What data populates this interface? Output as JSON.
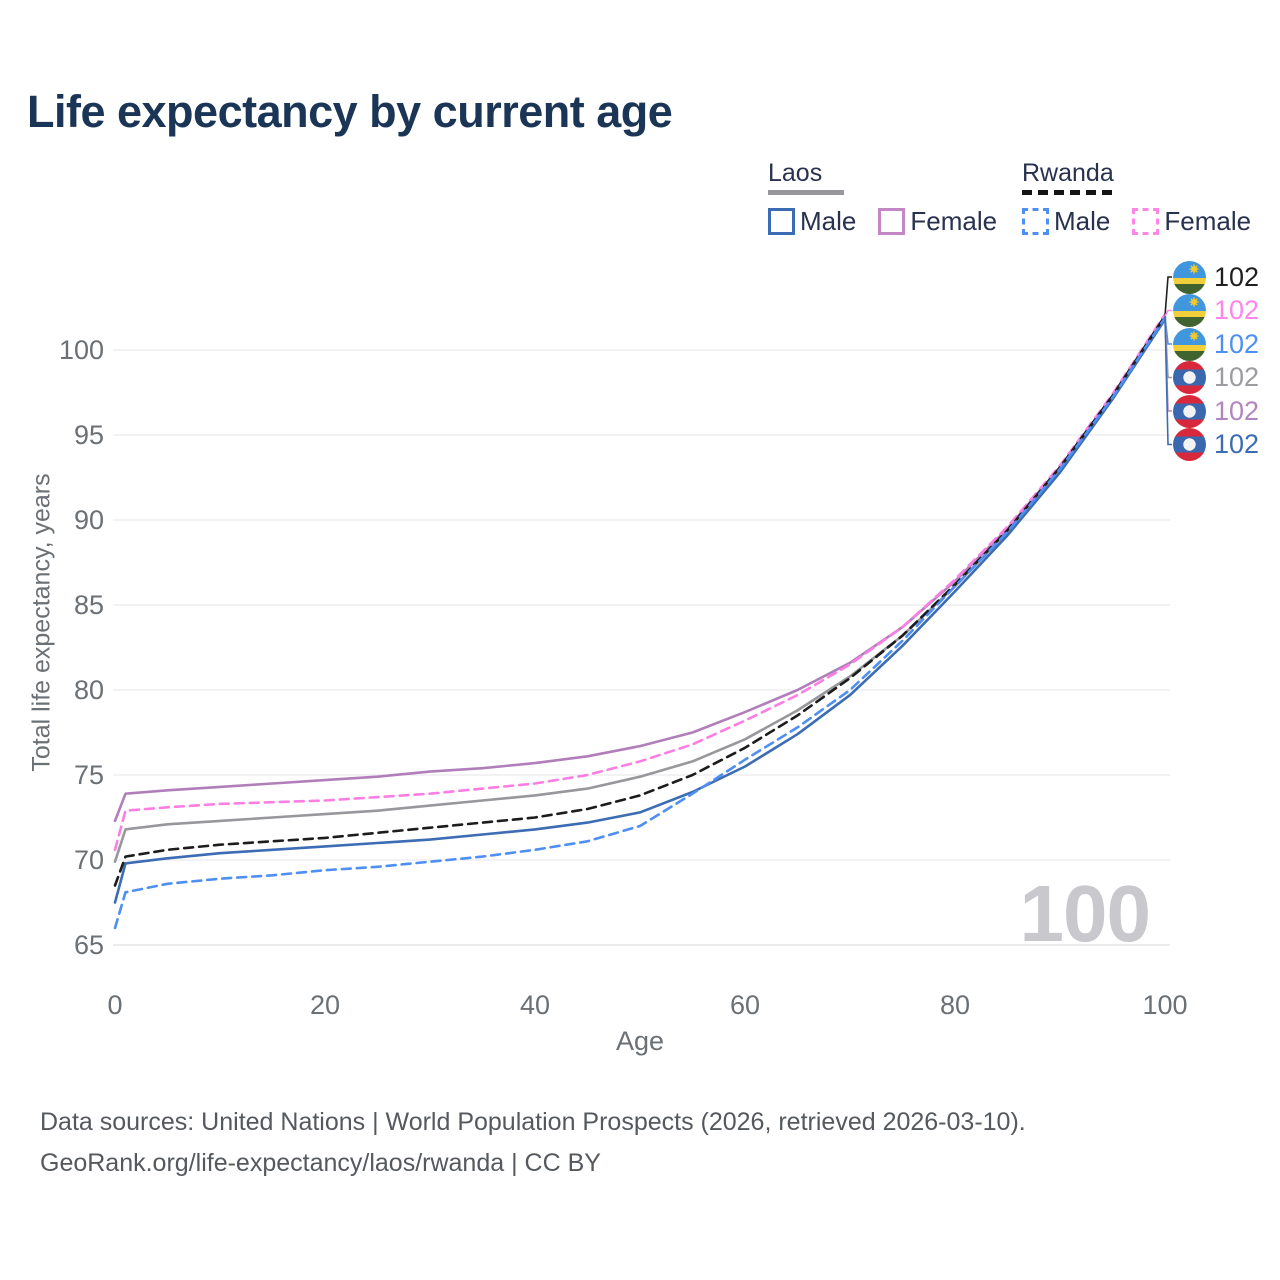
{
  "header": {
    "title": "Life expectancy by current age"
  },
  "legend": {
    "groups": [
      {
        "name": "Laos",
        "line_style": "solid",
        "underline_color": "#97979c",
        "items": [
          {
            "label": "Male",
            "color": "#3b6cb4"
          },
          {
            "label": "Female",
            "color": "#c287c4"
          }
        ]
      },
      {
        "name": "Rwanda",
        "line_style": "dashed",
        "underline_color": "#141414",
        "items": [
          {
            "label": "Male",
            "color": "#4d8ff2"
          },
          {
            "label": "Female",
            "color": "#ff85e8"
          }
        ]
      }
    ]
  },
  "chart_data": {
    "type": "line",
    "title": "Life expectancy by current age",
    "xlabel": "Age",
    "ylabel": "Total life expectancy, years",
    "xlim": [
      0,
      100
    ],
    "ylim": [
      65,
      102
    ],
    "xticks": [
      0,
      20,
      40,
      60,
      80,
      100
    ],
    "yticks": [
      65,
      70,
      75,
      80,
      85,
      90,
      95,
      100
    ],
    "grid": "horizontal",
    "legend_position": "top-right",
    "watermark": "100",
    "ages": [
      0,
      1,
      5,
      10,
      15,
      20,
      25,
      30,
      35,
      40,
      45,
      50,
      55,
      60,
      65,
      70,
      75,
      80,
      85,
      90,
      95,
      100
    ],
    "series": [
      {
        "id": "laos-female",
        "country": "Laos",
        "sex": "Female",
        "color": "#b07fba",
        "dash": "solid",
        "values": [
          72.3,
          73.9,
          74.1,
          74.3,
          74.5,
          74.7,
          74.9,
          75.2,
          75.4,
          75.7,
          76.1,
          76.7,
          77.5,
          78.7,
          80.0,
          81.6,
          83.7,
          86.4,
          89.5,
          93.1,
          97.3,
          102.0
        ]
      },
      {
        "id": "laos-total",
        "country": "Laos",
        "sex": "Both",
        "color": "#97979c",
        "dash": "solid",
        "values": [
          69.9,
          71.8,
          72.1,
          72.3,
          72.5,
          72.7,
          72.9,
          73.2,
          73.5,
          73.8,
          74.2,
          74.9,
          75.8,
          77.1,
          78.8,
          80.8,
          83.2,
          86.1,
          89.3,
          93.0,
          97.2,
          101.9
        ]
      },
      {
        "id": "laos-male",
        "country": "Laos",
        "sex": "Male",
        "color": "#3b6cb4",
        "dash": "solid",
        "values": [
          67.5,
          69.8,
          70.1,
          70.4,
          70.6,
          70.8,
          71.0,
          71.2,
          71.5,
          71.8,
          72.2,
          72.8,
          74.0,
          75.5,
          77.4,
          79.7,
          82.6,
          85.8,
          89.1,
          92.8,
          97.1,
          101.8
        ]
      },
      {
        "id": "rwanda-female",
        "country": "Rwanda",
        "sex": "Female",
        "color": "#fb7fe2",
        "dash": "dashed",
        "values": [
          70.6,
          72.9,
          73.1,
          73.3,
          73.4,
          73.5,
          73.7,
          73.9,
          74.2,
          74.5,
          75.0,
          75.8,
          76.8,
          78.2,
          79.7,
          81.5,
          83.7,
          86.5,
          89.6,
          93.2,
          97.4,
          102.1
        ]
      },
      {
        "id": "rwanda-total",
        "country": "Rwanda",
        "sex": "Both",
        "color": "#1c1c1c",
        "dash": "dashed",
        "values": [
          68.5,
          70.2,
          70.6,
          70.9,
          71.1,
          71.3,
          71.6,
          71.9,
          72.2,
          72.5,
          73.0,
          73.8,
          75.0,
          76.6,
          78.5,
          80.7,
          83.2,
          86.2,
          89.4,
          93.1,
          97.3,
          102.0
        ]
      },
      {
        "id": "rwanda-male",
        "country": "Rwanda",
        "sex": "Male",
        "color": "#4d8ff2",
        "dash": "dashed",
        "values": [
          66.0,
          68.1,
          68.6,
          68.9,
          69.1,
          69.4,
          69.6,
          69.9,
          70.2,
          70.6,
          71.1,
          72.0,
          73.9,
          75.9,
          77.8,
          80.0,
          82.9,
          86.1,
          89.3,
          93.0,
          97.2,
          101.9
        ]
      }
    ],
    "end_labels": [
      {
        "country": "Rwanda",
        "flag": "rwanda",
        "value": "102",
        "color": "#1f1f1f"
      },
      {
        "country": "Rwanda",
        "flag": "rwanda",
        "value": "102",
        "color": "#ff85e8"
      },
      {
        "country": "Rwanda",
        "flag": "rwanda",
        "value": "102",
        "color": "#4d8ff2"
      },
      {
        "country": "Laos",
        "flag": "laos",
        "value": "102",
        "color": "#9b9ba0"
      },
      {
        "country": "Laos",
        "flag": "laos",
        "value": "102",
        "color": "#b286bd"
      },
      {
        "country": "Laos",
        "flag": "laos",
        "value": "102",
        "color": "#3b6cb4"
      }
    ]
  },
  "footer": {
    "line1": "Data sources: United Nations | World Population Prospects (2026, retrieved 2026-03-10).",
    "line2": "GeoRank.org/life-expectancy/laos/rwanda | CC BY"
  }
}
